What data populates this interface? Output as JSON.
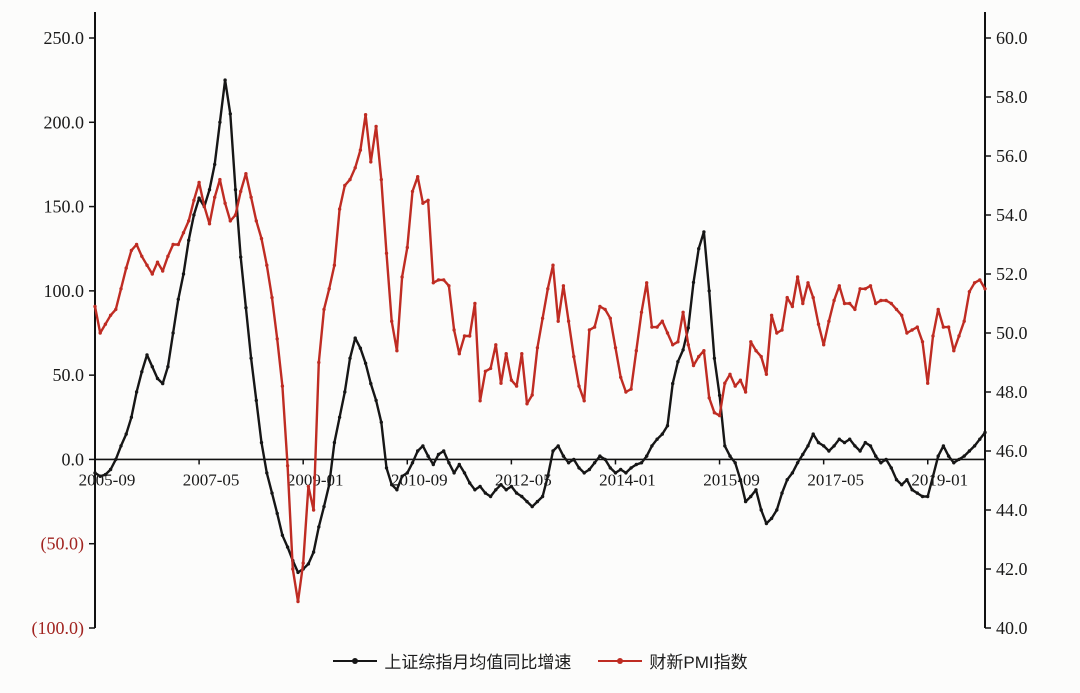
{
  "chart": {
    "background": "#fcfcfb",
    "axis_color": "#111111",
    "negative_tick_color": "#a12420",
    "tick_color": "#1a1a1a"
  },
  "chart_data": {
    "type": "line",
    "title": "",
    "grid": false,
    "legend_position": "bottom",
    "x_frequency": "monthly",
    "x_start": "2005-09",
    "x_end": "2019-12",
    "x_tick_indices": [
      0,
      20,
      40,
      60,
      80,
      100,
      120,
      140,
      160
    ],
    "x_tick_labels": [
      "2005-09",
      "2007-05",
      "2009-01",
      "2010-09",
      "2012-05",
      "2014-01",
      "2015-09",
      "2017-05",
      "2019-01"
    ],
    "left_axis": {
      "min": -100,
      "max": 250,
      "ticks": [
        250,
        200,
        150,
        100,
        50,
        0,
        -50,
        -100
      ],
      "tick_labels": [
        "250.0",
        "200.0",
        "150.0",
        "100.0",
        "50.0",
        "0.0",
        "(50.0)",
        "(100.0)"
      ],
      "negative_label_format": "parentheses"
    },
    "right_axis": {
      "min": 40,
      "max": 60,
      "ticks": [
        60,
        58,
        56,
        54,
        52,
        50,
        48,
        46,
        44,
        42,
        40
      ],
      "tick_labels": [
        "60.0",
        "58.0",
        "56.0",
        "54.0",
        "52.0",
        "50.0",
        "48.0",
        "46.0",
        "44.0",
        "42.0",
        "40.0"
      ]
    },
    "series": [
      {
        "name": "上证综指月均值同比增速",
        "axis": "left",
        "color": "#161616",
        "values": [
          -8,
          -10,
          -9,
          -6,
          0,
          8,
          15,
          25,
          40,
          52,
          62,
          55,
          48,
          45,
          55,
          75,
          95,
          110,
          130,
          145,
          155,
          150,
          160,
          175,
          200,
          225,
          205,
          160,
          120,
          90,
          60,
          35,
          10,
          -8,
          -20,
          -32,
          -45,
          -52,
          -60,
          -67,
          -65,
          -62,
          -55,
          -40,
          -28,
          -15,
          10,
          25,
          40,
          60,
          72,
          66,
          57,
          45,
          35,
          22,
          -5,
          -15,
          -18,
          -10,
          -8,
          -2,
          5,
          8,
          2,
          -3,
          3,
          5,
          -2,
          -8,
          -3,
          -8,
          -14,
          -18,
          -16,
          -20,
          -22,
          -18,
          -15,
          -18,
          -16,
          -20,
          -22,
          -25,
          -28,
          -25,
          -22,
          -10,
          5,
          8,
          2,
          -2,
          0,
          -5,
          -8,
          -6,
          -2,
          2,
          0,
          -5,
          -8,
          -6,
          -8,
          -5,
          -3,
          -2,
          2,
          8,
          12,
          15,
          20,
          45,
          58,
          65,
          78,
          105,
          125,
          135,
          100,
          60,
          38,
          8,
          2,
          -2,
          -12,
          -25,
          -22,
          -18,
          -30,
          -38,
          -35,
          -30,
          -20,
          -12,
          -8,
          -2,
          3,
          8,
          15,
          10,
          8,
          5,
          8,
          12,
          10,
          12,
          8,
          5,
          10,
          8,
          2,
          -2,
          0,
          -5,
          -12,
          -15,
          -12,
          -18,
          -20,
          -22,
          -22,
          -10,
          2,
          8,
          2,
          -2,
          0,
          2,
          5,
          8,
          12,
          16
        ]
      },
      {
        "name": "财新PMI指数",
        "axis": "right",
        "color": "#bf2c23",
        "values": [
          50.9,
          50.0,
          50.3,
          50.6,
          50.8,
          51.5,
          52.2,
          52.8,
          53.0,
          52.6,
          52.3,
          52.0,
          52.4,
          52.1,
          52.6,
          53.0,
          53.0,
          53.4,
          53.8,
          54.5,
          55.1,
          54.3,
          53.7,
          54.6,
          55.2,
          54.4,
          53.8,
          54.0,
          54.8,
          55.4,
          54.6,
          53.8,
          53.2,
          52.3,
          51.2,
          49.8,
          48.2,
          45.5,
          42.0,
          40.9,
          42.2,
          44.8,
          44.0,
          49.0,
          50.8,
          51.5,
          52.3,
          54.2,
          55.0,
          55.2,
          55.6,
          56.2,
          57.4,
          55.8,
          57.0,
          55.2,
          52.7,
          50.4,
          49.4,
          51.9,
          52.9,
          54.8,
          55.3,
          54.4,
          54.5,
          51.7,
          51.8,
          51.8,
          51.6,
          50.1,
          49.3,
          49.9,
          49.9,
          51.0,
          47.7,
          48.7,
          48.8,
          49.6,
          48.3,
          49.3,
          48.4,
          48.2,
          49.3,
          47.6,
          47.9,
          49.5,
          50.5,
          51.5,
          52.3,
          50.4,
          51.6,
          50.4,
          49.2,
          48.2,
          47.7,
          50.1,
          50.2,
          50.9,
          50.8,
          50.5,
          49.5,
          48.5,
          48.0,
          48.1,
          49.4,
          50.7,
          51.7,
          50.2,
          50.2,
          50.4,
          50.0,
          49.6,
          49.7,
          50.7,
          49.6,
          48.9,
          49.2,
          49.4,
          47.8,
          47.3,
          47.2,
          48.3,
          48.6,
          48.2,
          48.4,
          48.0,
          49.7,
          49.4,
          49.2,
          48.6,
          50.6,
          50.0,
          50.1,
          51.2,
          50.9,
          51.9,
          51.0,
          51.7,
          51.2,
          50.3,
          49.6,
          50.4,
          51.1,
          51.6,
          51.0,
          51.0,
          50.8,
          51.5,
          51.5,
          51.6,
          51.0,
          51.1,
          51.1,
          51.0,
          50.8,
          50.6,
          50.0,
          50.1,
          50.2,
          49.7,
          48.3,
          49.9,
          50.8,
          50.2,
          50.2,
          49.4,
          49.9,
          50.4,
          51.4,
          51.7,
          51.8,
          51.5
        ]
      }
    ]
  }
}
